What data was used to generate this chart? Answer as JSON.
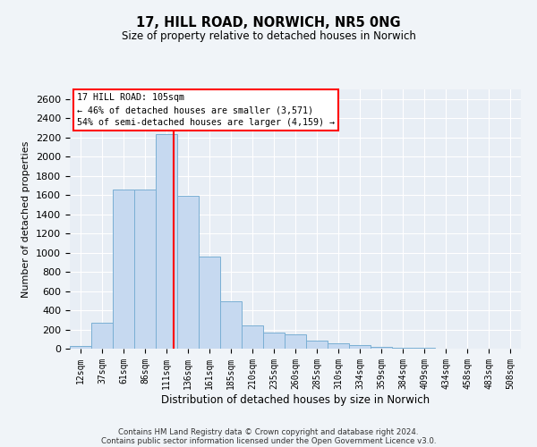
{
  "title1": "17, HILL ROAD, NORWICH, NR5 0NG",
  "title2": "Size of property relative to detached houses in Norwich",
  "xlabel": "Distribution of detached houses by size in Norwich",
  "ylabel": "Number of detached properties",
  "bar_labels": [
    "12sqm",
    "37sqm",
    "61sqm",
    "86sqm",
    "111sqm",
    "136sqm",
    "161sqm",
    "185sqm",
    "210sqm",
    "235sqm",
    "260sqm",
    "285sqm",
    "310sqm",
    "334sqm",
    "359sqm",
    "384sqm",
    "409sqm",
    "434sqm",
    "458sqm",
    "483sqm",
    "508sqm"
  ],
  "bar_values": [
    28,
    270,
    1660,
    1660,
    2230,
    1590,
    960,
    490,
    240,
    165,
    145,
    80,
    60,
    40,
    18,
    9,
    7,
    4,
    3,
    2,
    1
  ],
  "bar_color": "#c6d9f0",
  "bar_edgecolor": "#7aafd4",
  "ylim": [
    0,
    2700
  ],
  "yticks": [
    0,
    200,
    400,
    600,
    800,
    1000,
    1200,
    1400,
    1600,
    1800,
    2000,
    2200,
    2400,
    2600
  ],
  "annotation_title": "17 HILL ROAD: 105sqm",
  "annotation_line1": "← 46% of detached houses are smaller (3,571)",
  "annotation_line2": "54% of semi-detached houses are larger (4,159) →",
  "footer1": "Contains HM Land Registry data © Crown copyright and database right 2024.",
  "footer2": "Contains public sector information licensed under the Open Government Licence v3.0.",
  "bg_color": "#f0f4f8",
  "plot_bg_color": "#e8eef5",
  "red_line_index": 4.35
}
